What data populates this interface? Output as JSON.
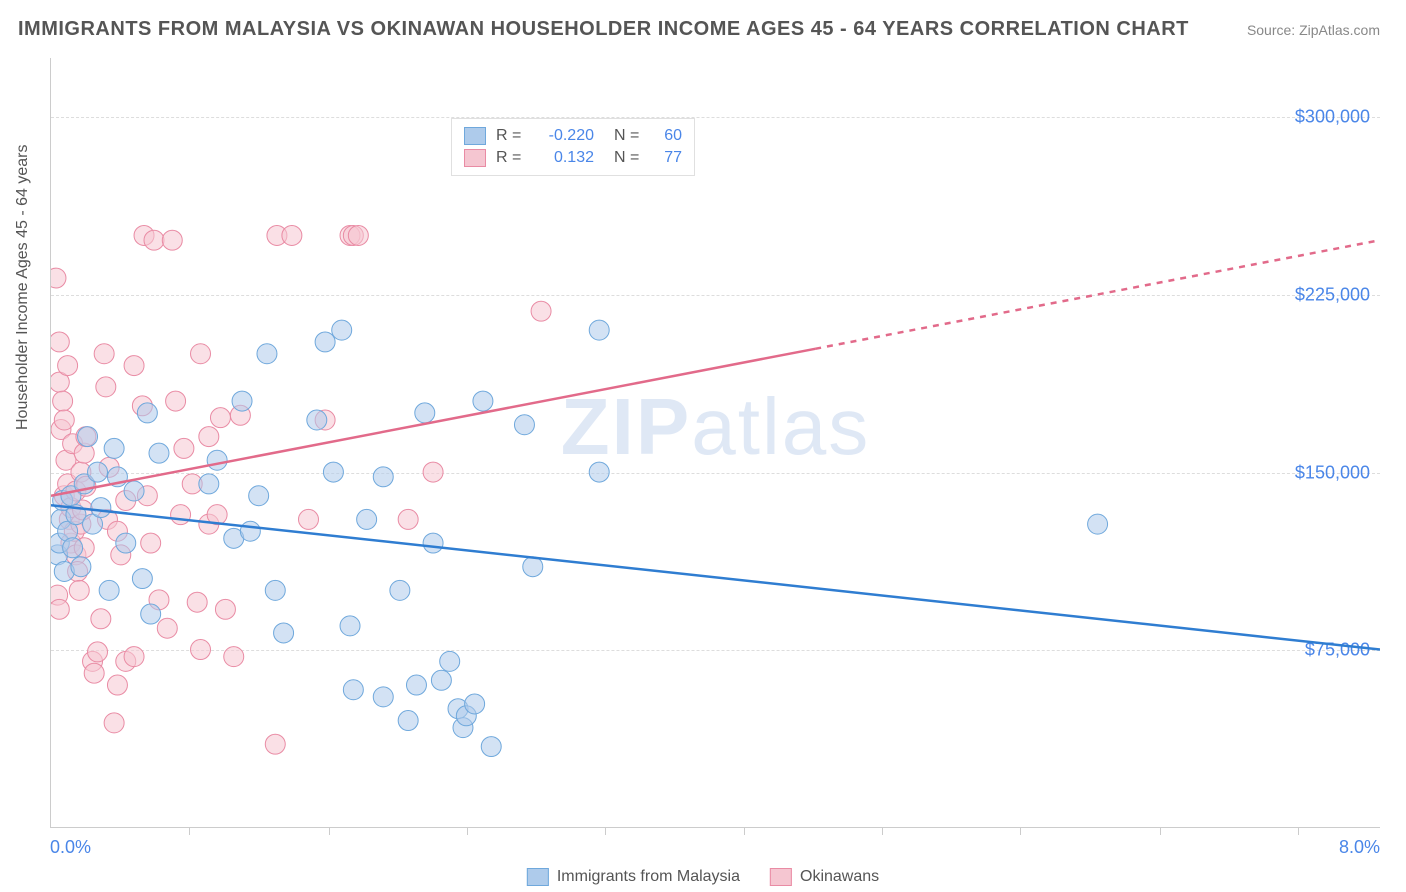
{
  "title": "IMMIGRANTS FROM MALAYSIA VS OKINAWAN HOUSEHOLDER INCOME AGES 45 - 64 YEARS CORRELATION CHART",
  "source": "Source: ZipAtlas.com",
  "ylabel": "Householder Income Ages 45 - 64 years",
  "watermark_bold": "ZIP",
  "watermark_rest": "atlas",
  "chart": {
    "type": "scatter",
    "xlim": [
      0.0,
      8.0
    ],
    "ylim": [
      0,
      325000
    ],
    "x_end_left_label": "0.0%",
    "x_end_right_label": "8.0%",
    "y_ticks": [
      75000,
      150000,
      225000,
      300000
    ],
    "y_tick_labels": [
      "$75,000",
      "$150,000",
      "$225,000",
      "$300,000"
    ],
    "x_tick_positions": [
      0.83,
      1.67,
      2.5,
      3.33,
      4.17,
      5.0,
      5.83,
      6.67,
      7.5
    ],
    "grid_color": "#dddddd",
    "axis_color": "#cccccc",
    "background_color": "#ffffff",
    "marker_radius": 10,
    "marker_opacity": 0.55,
    "series": [
      {
        "name": "Immigrants from Malaysia",
        "color_fill": "#aecbeb",
        "color_stroke": "#6fa8dc",
        "R": -0.22,
        "N": 60,
        "trend": {
          "x1": 0.0,
          "y1": 136000,
          "x2": 8.0,
          "y2": 75000,
          "dash_from_x": null,
          "color": "#2f7dd1",
          "width": 2.5
        },
        "points": [
          [
            0.04,
            115000
          ],
          [
            0.05,
            120000
          ],
          [
            0.06,
            130000
          ],
          [
            0.07,
            138000
          ],
          [
            0.08,
            108000
          ],
          [
            0.1,
            125000
          ],
          [
            0.12,
            140000
          ],
          [
            0.13,
            118000
          ],
          [
            0.15,
            132000
          ],
          [
            0.18,
            110000
          ],
          [
            0.2,
            145000
          ],
          [
            0.22,
            165000
          ],
          [
            0.25,
            128000
          ],
          [
            0.28,
            150000
          ],
          [
            0.3,
            135000
          ],
          [
            0.35,
            100000
          ],
          [
            0.38,
            160000
          ],
          [
            0.4,
            148000
          ],
          [
            0.45,
            120000
          ],
          [
            0.5,
            142000
          ],
          [
            0.55,
            105000
          ],
          [
            0.58,
            175000
          ],
          [
            0.6,
            90000
          ],
          [
            0.65,
            158000
          ],
          [
            0.95,
            145000
          ],
          [
            1.0,
            155000
          ],
          [
            1.1,
            122000
          ],
          [
            1.15,
            180000
          ],
          [
            1.2,
            125000
          ],
          [
            1.25,
            140000
          ],
          [
            1.3,
            200000
          ],
          [
            1.35,
            100000
          ],
          [
            1.4,
            82000
          ],
          [
            1.6,
            172000
          ],
          [
            1.65,
            205000
          ],
          [
            1.7,
            150000
          ],
          [
            1.75,
            210000
          ],
          [
            1.8,
            85000
          ],
          [
            1.82,
            58000
          ],
          [
            1.9,
            130000
          ],
          [
            2.0,
            148000
          ],
          [
            2.0,
            55000
          ],
          [
            2.1,
            100000
          ],
          [
            2.15,
            45000
          ],
          [
            2.2,
            60000
          ],
          [
            2.25,
            175000
          ],
          [
            2.3,
            120000
          ],
          [
            2.35,
            62000
          ],
          [
            2.4,
            70000
          ],
          [
            2.45,
            50000
          ],
          [
            2.48,
            42000
          ],
          [
            2.5,
            47000
          ],
          [
            2.55,
            52000
          ],
          [
            2.6,
            180000
          ],
          [
            2.65,
            34000
          ],
          [
            2.85,
            170000
          ],
          [
            2.9,
            110000
          ],
          [
            3.3,
            150000
          ],
          [
            3.3,
            210000
          ],
          [
            6.3,
            128000
          ]
        ]
      },
      {
        "name": "Okinawans",
        "color_fill": "#f5c6d1",
        "color_stroke": "#e98ba4",
        "R": 0.132,
        "N": 77,
        "trend": {
          "x1": 0.0,
          "y1": 140000,
          "x2": 8.0,
          "y2": 248000,
          "dash_from_x": 4.6,
          "color": "#e26a8a",
          "width": 2.5
        },
        "points": [
          [
            0.03,
            232000
          ],
          [
            0.04,
            98000
          ],
          [
            0.05,
            205000
          ],
          [
            0.05,
            188000
          ],
          [
            0.06,
            168000
          ],
          [
            0.07,
            180000
          ],
          [
            0.08,
            140000
          ],
          [
            0.08,
            172000
          ],
          [
            0.09,
            155000
          ],
          [
            0.1,
            195000
          ],
          [
            0.1,
            145000
          ],
          [
            0.11,
            130000
          ],
          [
            0.12,
            135000
          ],
          [
            0.12,
            120000
          ],
          [
            0.13,
            162000
          ],
          [
            0.14,
            125000
          ],
          [
            0.15,
            142000
          ],
          [
            0.15,
            115000
          ],
          [
            0.16,
            108000
          ],
          [
            0.17,
            100000
          ],
          [
            0.18,
            150000
          ],
          [
            0.18,
            128000
          ],
          [
            0.19,
            134000
          ],
          [
            0.2,
            158000
          ],
          [
            0.2,
            118000
          ],
          [
            0.21,
            144000
          ],
          [
            0.21,
            165000
          ],
          [
            0.25,
            70000
          ],
          [
            0.26,
            65000
          ],
          [
            0.28,
            74000
          ],
          [
            0.3,
            88000
          ],
          [
            0.33,
            186000
          ],
          [
            0.34,
            130000
          ],
          [
            0.35,
            152000
          ],
          [
            0.38,
            44000
          ],
          [
            0.4,
            60000
          ],
          [
            0.4,
            125000
          ],
          [
            0.42,
            115000
          ],
          [
            0.45,
            138000
          ],
          [
            0.45,
            70000
          ],
          [
            0.5,
            195000
          ],
          [
            0.5,
            72000
          ],
          [
            0.55,
            178000
          ],
          [
            0.56,
            250000
          ],
          [
            0.58,
            140000
          ],
          [
            0.6,
            120000
          ],
          [
            0.62,
            248000
          ],
          [
            0.65,
            96000
          ],
          [
            0.7,
            84000
          ],
          [
            0.73,
            248000
          ],
          [
            0.75,
            180000
          ],
          [
            0.78,
            132000
          ],
          [
            0.8,
            160000
          ],
          [
            0.85,
            145000
          ],
          [
            0.88,
            95000
          ],
          [
            0.9,
            200000
          ],
          [
            0.9,
            75000
          ],
          [
            0.95,
            128000
          ],
          [
            0.95,
            165000
          ],
          [
            1.0,
            132000
          ],
          [
            1.02,
            173000
          ],
          [
            1.05,
            92000
          ],
          [
            1.1,
            72000
          ],
          [
            1.14,
            174000
          ],
          [
            1.35,
            35000
          ],
          [
            1.36,
            250000
          ],
          [
            1.45,
            250000
          ],
          [
            1.55,
            130000
          ],
          [
            1.65,
            172000
          ],
          [
            1.8,
            250000
          ],
          [
            1.82,
            250000
          ],
          [
            1.85,
            250000
          ],
          [
            2.15,
            130000
          ],
          [
            2.3,
            150000
          ],
          [
            2.95,
            218000
          ],
          [
            0.32,
            200000
          ],
          [
            0.05,
            92000
          ]
        ]
      }
    ]
  },
  "legend_top": {
    "r_label": "R =",
    "n_label": "N ="
  },
  "legend_bottom": [
    {
      "label": "Immigrants from Malaysia",
      "fill": "#aecbeb",
      "stroke": "#6fa8dc"
    },
    {
      "label": "Okinawans",
      "fill": "#f5c6d1",
      "stroke": "#e98ba4"
    }
  ],
  "colors": {
    "title": "#555555",
    "source": "#888888",
    "tick_label": "#4a86e8"
  }
}
